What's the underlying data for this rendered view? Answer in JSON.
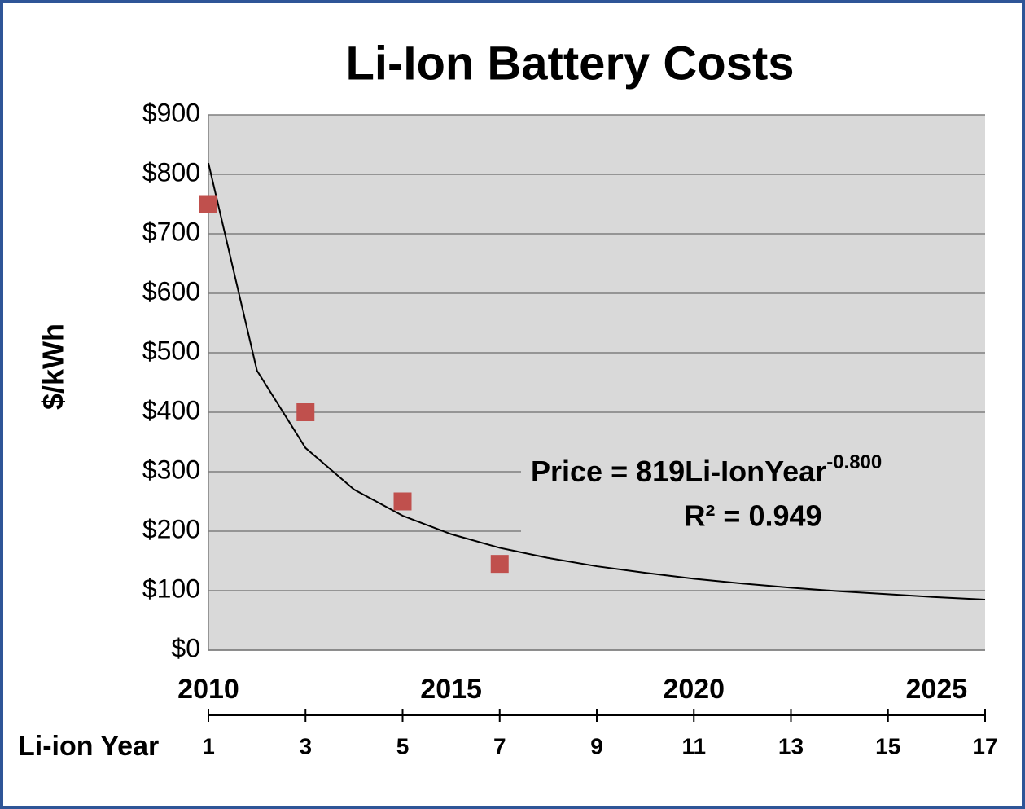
{
  "chart_data": {
    "type": "scatter",
    "title": "Li-Ion Battery Costs",
    "y_label": "$/kWh",
    "x_label": "Li-ion Year",
    "x": [
      1,
      3,
      5,
      7
    ],
    "values": [
      750,
      400,
      250,
      145
    ],
    "color": "#c0504d",
    "trendline": {
      "x": [
        1,
        2,
        3,
        4,
        5,
        6,
        7,
        8,
        9,
        10,
        11,
        12,
        13,
        14,
        15,
        16,
        17
      ],
      "values": [
        819,
        470,
        340,
        270,
        226,
        195,
        172,
        155,
        141,
        130,
        120,
        112,
        105,
        99,
        94,
        89,
        85
      ],
      "color": "#000000"
    },
    "annotation": {
      "equation": "Price = 819Li-IonYear",
      "exponent": "-0.800",
      "r_squared": "R² = 0.949"
    },
    "xlim": [
      1,
      17
    ],
    "xticks": [
      1,
      3,
      5,
      7,
      9,
      11,
      13,
      15,
      17
    ],
    "x2lim": [
      2010,
      2026
    ],
    "x2ticks": [
      2010,
      2015,
      2020,
      2025
    ],
    "ylim": [
      0,
      900
    ],
    "yticks": [
      {
        "value": 0,
        "label": "$0"
      },
      {
        "value": 100,
        "label": "$100"
      },
      {
        "value": 200,
        "label": "$200"
      },
      {
        "value": 300,
        "label": "$300"
      },
      {
        "value": 400,
        "label": "$400"
      },
      {
        "value": 500,
        "label": "$500"
      },
      {
        "value": 600,
        "label": "$600"
      },
      {
        "value": 700,
        "label": "$700"
      },
      {
        "value": 800,
        "label": "$800"
      },
      {
        "value": 900,
        "label": "$900"
      }
    ],
    "grid": true
  }
}
